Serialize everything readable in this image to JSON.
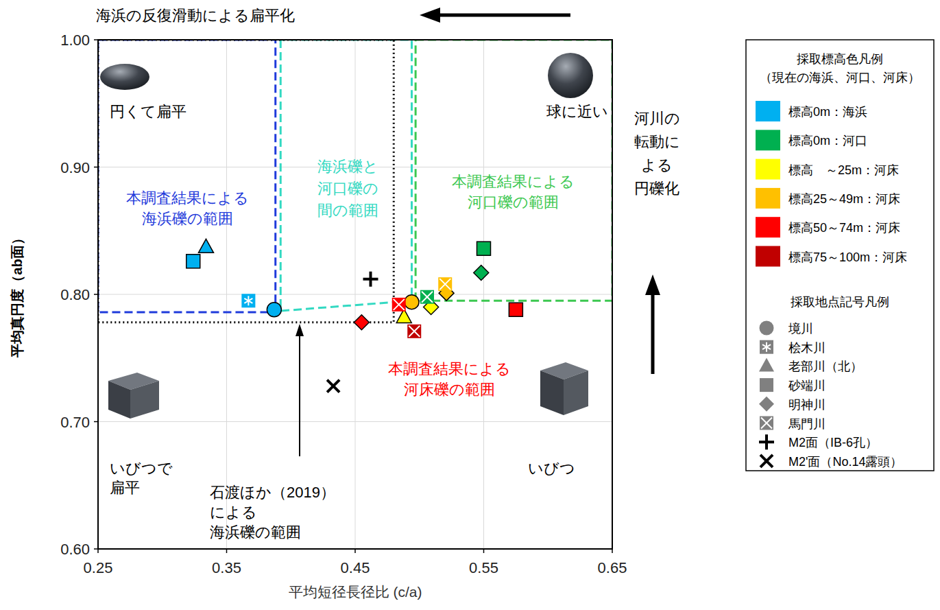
{
  "chart_data": {
    "type": "scatter",
    "x_label": "平均短径長径比 (c/a)",
    "y_label": "平均真円度（ab面）",
    "xlim": [
      0.25,
      0.65
    ],
    "ylim": [
      0.6,
      1.0
    ],
    "xticks": [
      0.25,
      0.35,
      0.45,
      0.55,
      0.65
    ],
    "yticks": [
      {
        "value": 0.6,
        "label": "0.60"
      },
      {
        "value": 0.7,
        "label": "0.70"
      },
      {
        "value": 0.8,
        "label": "0.80"
      },
      {
        "value": 0.9,
        "label": "0.90"
      },
      {
        "value": 1.0,
        "label": "1.00"
      }
    ],
    "grid": true,
    "legend": "right",
    "x_arrow_label": "海浜の反復滑動による扁平化",
    "y_arrow_label": [
      "河川の",
      "転動に",
      "よる",
      "円礫化"
    ],
    "shape_labels": [
      [
        "円くて扁平"
      ],
      [
        "球に近い"
      ],
      [
        "いびつで",
        "扁平"
      ],
      [
        "いびつ"
      ]
    ],
    "regions": [
      {
        "label": [
          "本調査結果による",
          "海浜礫の範囲"
        ],
        "color": "#1F3BDB",
        "line_style": "dashed",
        "points": [
          [
            0.25,
            1.0
          ],
          [
            0.388,
            1.0
          ],
          [
            0.388,
            0.786
          ],
          [
            0.25,
            0.786
          ]
        ]
      },
      {
        "label": [
          "海浜礫と",
          "河口礫の",
          "間の範囲"
        ],
        "color": "#33D9C2",
        "line_style": "dashed",
        "points": [
          [
            0.392,
            1.0
          ],
          [
            0.392,
            0.787
          ],
          [
            0.494,
            0.795
          ],
          [
            0.494,
            1.0
          ]
        ]
      },
      {
        "label": [
          "本調査結果による",
          "河口礫の範囲"
        ],
        "color": "#3CC850",
        "line_style": "dashed",
        "points": [
          [
            0.497,
            1.0
          ],
          [
            0.65,
            1.0
          ],
          [
            0.65,
            0.795
          ],
          [
            0.497,
            0.795
          ]
        ]
      },
      {
        "label": [
          "石渡ほか（2019）",
          "による",
          "海浜礫の範囲"
        ],
        "color": "#000000",
        "line_style": "dotted",
        "points": [
          [
            0.25,
            1.0
          ],
          [
            0.48,
            1.0
          ],
          [
            0.48,
            0.778
          ],
          [
            0.25,
            0.778
          ]
        ]
      }
    ],
    "annotations": [
      {
        "lines": [
          "本調査結果による",
          "河床礫の範囲"
        ],
        "color": "#FF0000"
      }
    ],
    "color_legend": {
      "title": [
        "採取標高色凡例",
        "（現在の海浜、河口、河床）"
      ],
      "items": [
        {
          "label": "標高0m：海浜",
          "color": "#00B0F0"
        },
        {
          "label": "標高0m：河口",
          "color": "#00B050"
        },
        {
          "label": "標高　～25m：河床",
          "color": "#FFFF00"
        },
        {
          "label": "標高25～49m：河床",
          "color": "#FFC000"
        },
        {
          "label": "標高50～74m：河床",
          "color": "#FF0000"
        },
        {
          "label": "標高75～100m：河床",
          "color": "#C00000"
        }
      ]
    },
    "marker_legend_title": "採取地点記号凡例",
    "series": [
      {
        "name": "境川",
        "marker": "circle",
        "x": [
          0.387,
          0.494
        ],
        "values": [
          0.788,
          0.794
        ],
        "colors": [
          "#00B0F0",
          "#FFC000"
        ]
      },
      {
        "name": "桧木川",
        "marker": "asterisk",
        "x": [
          0.367
        ],
        "values": [
          0.795
        ],
        "colors": [
          "#00B0F0"
        ]
      },
      {
        "name": "老部川（北）",
        "marker": "triangle",
        "x": [
          0.334,
          0.488
        ],
        "values": [
          0.837,
          0.782
        ],
        "colors": [
          "#00B0F0",
          "#FFFF00"
        ]
      },
      {
        "name": "砂端川",
        "marker": "square",
        "x": [
          0.324,
          0.55,
          0.575
        ],
        "values": [
          0.826,
          0.836,
          0.788
        ],
        "colors": [
          "#00B0F0",
          "#00B050",
          "#FF0000"
        ]
      },
      {
        "name": "明神川",
        "marker": "diamond",
        "x": [
          0.455,
          0.509,
          0.521,
          0.548
        ],
        "values": [
          0.778,
          0.79,
          0.801,
          0.817
        ],
        "colors": [
          "#FF0000",
          "#FFFF00",
          "#FFC000",
          "#00B050"
        ]
      },
      {
        "name": "馬門川",
        "marker": "x-square",
        "x": [
          0.484,
          0.496,
          0.506,
          0.52
        ],
        "values": [
          0.792,
          0.771,
          0.798,
          0.808
        ],
        "colors": [
          "#FF0000",
          "#C00000",
          "#00B050",
          "#FFC000"
        ]
      },
      {
        "name": "M2面（IB-6孔）",
        "marker": "plus",
        "x": [
          0.462
        ],
        "values": [
          0.812
        ],
        "color": "#000000"
      },
      {
        "name": "M2'面（No.14露頭）",
        "marker": "x",
        "x": [
          0.433
        ],
        "values": [
          0.728
        ],
        "color": "#000000"
      }
    ]
  }
}
